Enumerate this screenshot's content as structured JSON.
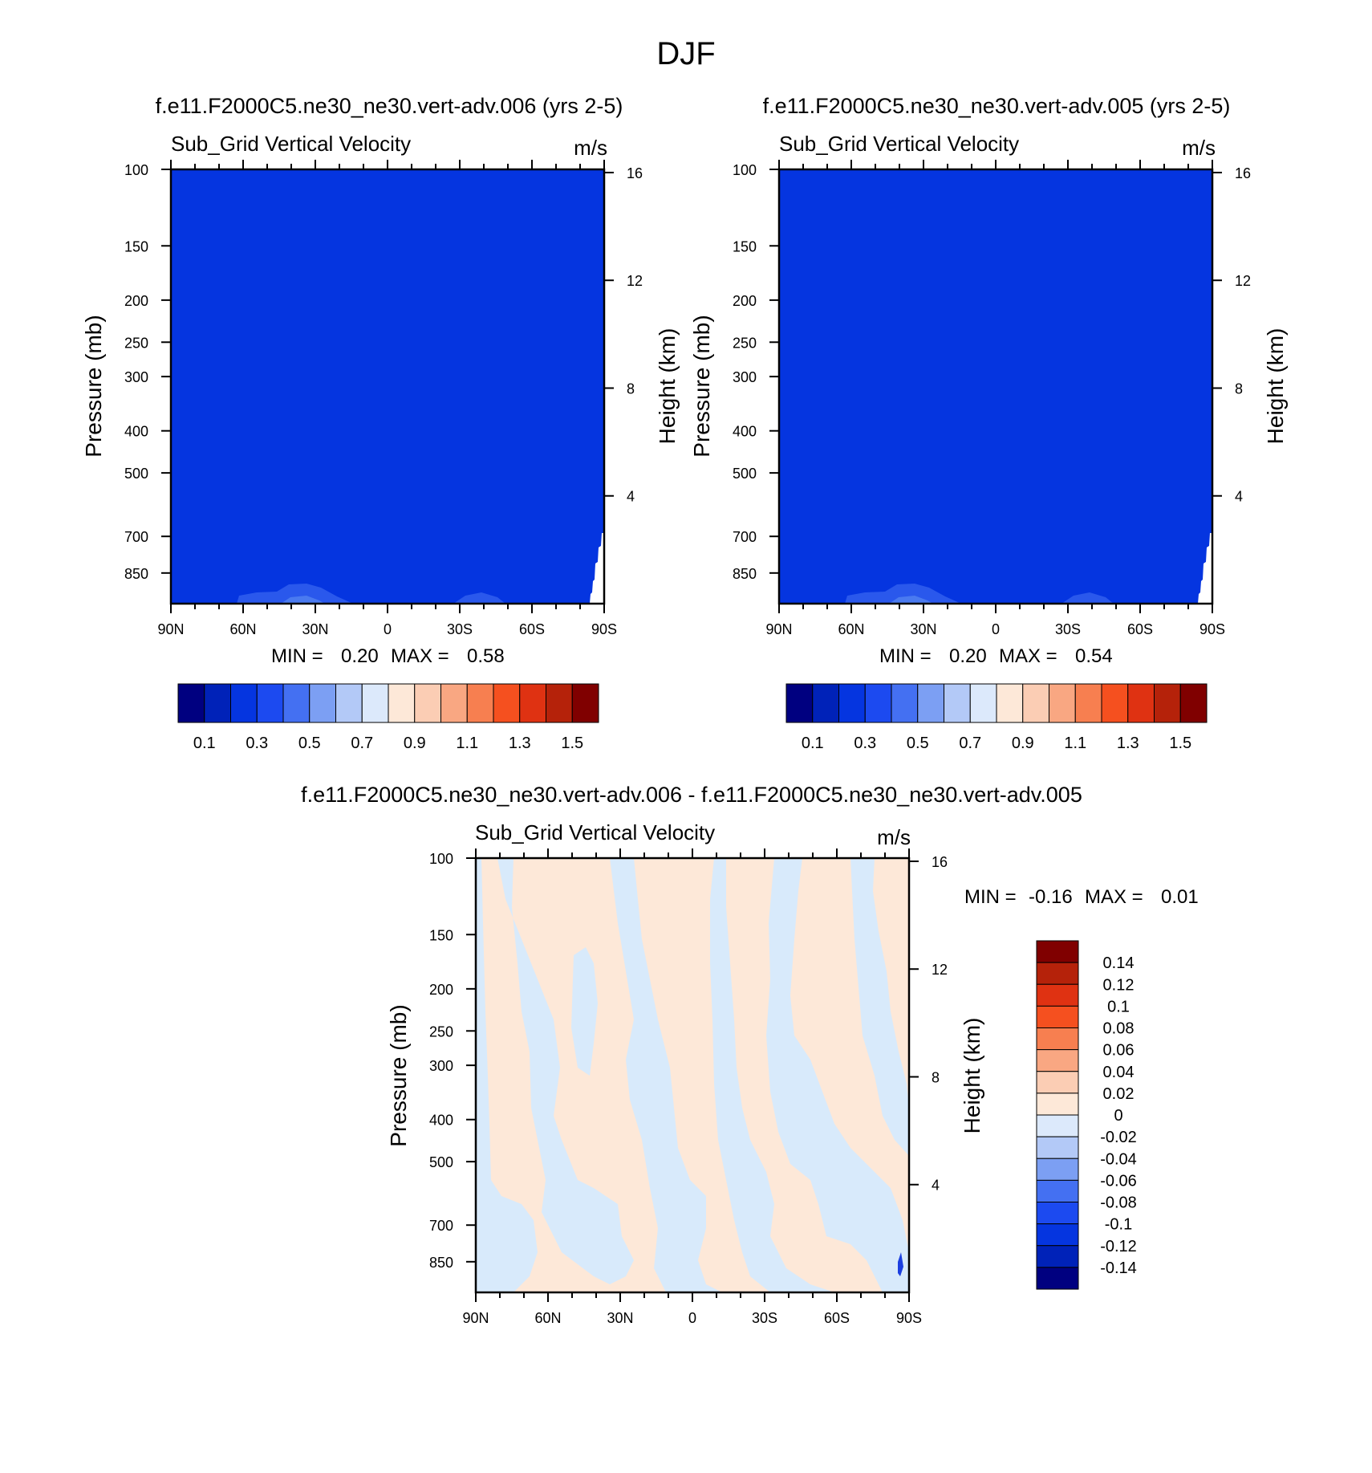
{
  "page_title": "DJF",
  "colors": {
    "background": "#ffffff",
    "field_blue": "#0535e0",
    "field_blue_light": "#2a58ec",
    "field_blue_lighter": "#4a7af0",
    "diff_pos": "#fde8d8",
    "diff_neg": "#d8eafb",
    "diff_neg_strong": "#1c3fe0"
  },
  "shared": {
    "panel_subtitle": "Sub_Grid Vertical Velocity",
    "units": "m/s",
    "ylabel_left": "Pressure (mb)",
    "ylabel_right": "Height (km)",
    "pressure_ticks": [
      "100",
      "150",
      "200",
      "250",
      "300",
      "400",
      "500",
      "700",
      "850"
    ],
    "height_ticks": [
      "16",
      "12",
      "8",
      "4"
    ],
    "lat_ticks": [
      "90N",
      "60N",
      "30N",
      "0",
      "30S",
      "60S",
      "90S"
    ],
    "min_label": "MIN =",
    "max_label": "MAX ="
  },
  "abs_colorbar": {
    "colors": [
      "#000080",
      "#0022b8",
      "#0535e0",
      "#1c4af0",
      "#4470f2",
      "#7c9ff3",
      "#b3c9f7",
      "#dce9fb",
      "#fde8d8",
      "#fbcdb4",
      "#f9a782",
      "#f77f50",
      "#f5501f",
      "#df3212",
      "#b5220a",
      "#800000"
    ],
    "labels": [
      "0.1",
      "0.3",
      "0.5",
      "0.7",
      "0.9",
      "1.1",
      "1.3",
      "1.5"
    ]
  },
  "diff_colorbar": {
    "colors": [
      "#000080",
      "#0022b8",
      "#0535e0",
      "#1c4af0",
      "#4470f2",
      "#7c9ff3",
      "#b3c9f7",
      "#dce9fb",
      "#fde8d8",
      "#fbcdb4",
      "#f9a782",
      "#f77f50",
      "#f5501f",
      "#df3212",
      "#b5220a",
      "#800000"
    ],
    "labels": [
      "0.14",
      "0.12",
      "0.1",
      "0.08",
      "0.06",
      "0.04",
      "0.02",
      "0",
      "-0.02",
      "-0.04",
      "-0.06",
      "-0.08",
      "-0.1",
      "-0.12",
      "-0.14"
    ]
  },
  "chart_data": [
    {
      "type": "heatmap",
      "title": "f.e11.F2000C5.ne30_ne30.vert-adv.006 (yrs 2-5)",
      "subtitle": "Sub_Grid Vertical Velocity",
      "units": "m/s",
      "xlabel": "",
      "ylabel": "Pressure (mb)",
      "ylabel_right": "Height (km)",
      "x_ticks": [
        "90N",
        "60N",
        "30N",
        "0",
        "30S",
        "60S",
        "90S"
      ],
      "y_ticks": [
        100,
        150,
        200,
        250,
        300,
        400,
        500,
        700,
        850
      ],
      "y_scale": "log-pressure",
      "min": "0.20",
      "max": "0.58"
    },
    {
      "type": "heatmap",
      "title": "f.e11.F2000C5.ne30_ne30.vert-adv.005 (yrs 2-5)",
      "subtitle": "Sub_Grid Vertical Velocity",
      "units": "m/s",
      "xlabel": "",
      "ylabel": "Pressure (mb)",
      "ylabel_right": "Height (km)",
      "x_ticks": [
        "90N",
        "60N",
        "30N",
        "0",
        "30S",
        "60S",
        "90S"
      ],
      "y_ticks": [
        100,
        150,
        200,
        250,
        300,
        400,
        500,
        700,
        850
      ],
      "y_scale": "log-pressure",
      "min": "0.20",
      "max": "0.54"
    },
    {
      "type": "heatmap",
      "title": "f.e11.F2000C5.ne30_ne30.vert-adv.006 - f.e11.F2000C5.ne30_ne30.vert-adv.005",
      "subtitle": "Sub_Grid Vertical Velocity",
      "units": "m/s",
      "xlabel": "",
      "ylabel": "Pressure (mb)",
      "ylabel_right": "Height (km)",
      "x_ticks": [
        "90N",
        "60N",
        "30N",
        "0",
        "30S",
        "60S",
        "90S"
      ],
      "y_ticks": [
        100,
        150,
        200,
        250,
        300,
        400,
        500,
        700,
        850
      ],
      "y_scale": "log-pressure",
      "min": "-0.16",
      "max": "0.01"
    }
  ]
}
